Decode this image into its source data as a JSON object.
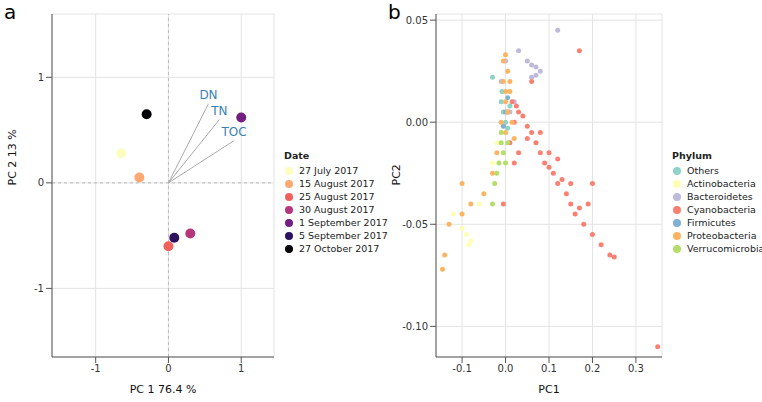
{
  "chart_data": [
    {
      "type": "scatter",
      "title": "a",
      "x_label": "PC 1  76.4 %",
      "y_label": "PC 2  13 %",
      "legend_title": "Date",
      "legend": "right",
      "grid": true,
      "marker": "circle",
      "xlim": [
        -1.6,
        1.45
      ],
      "ylim": [
        -1.65,
        1.6
      ],
      "xticks": [
        -1,
        0,
        1
      ],
      "yticks": [
        -1,
        0,
        1
      ],
      "series": [
        {
          "name": "27 July 2017",
          "color": "#FCFDBF",
          "x": [
            -0.65
          ],
          "y": [
            0.28
          ]
        },
        {
          "name": "15 August 2017",
          "color": "#FEA873",
          "x": [
            -0.4
          ],
          "y": [
            0.05
          ]
        },
        {
          "name": "25 August 2017",
          "color": "#F1605D",
          "x": [
            0.0
          ],
          "y": [
            -0.6
          ]
        },
        {
          "name": "30 August 2017",
          "color": "#B5367A",
          "x": [
            0.3
          ],
          "y": [
            -0.48
          ]
        },
        {
          "name": "1 September 2017",
          "color": "#721F81",
          "x": [
            1.0
          ],
          "y": [
            0.62
          ]
        },
        {
          "name": "5 September 2017",
          "color": "#2D1160",
          "x": [
            0.08
          ],
          "y": [
            -0.52
          ]
        },
        {
          "name": "27 October 2017",
          "color": "#000004",
          "x": [
            -0.3
          ],
          "y": [
            0.65
          ]
        }
      ],
      "loadings": [
        {
          "name": "DN",
          "x": 0.55,
          "y": 0.75
        },
        {
          "name": "TN",
          "x": 0.7,
          "y": 0.6
        },
        {
          "name": "TOC",
          "x": 0.9,
          "y": 0.4
        }
      ]
    },
    {
      "type": "scatter",
      "title": "b",
      "x_label": "PC1",
      "y_label": "PC2",
      "legend_title": "Phylum",
      "legend": "right",
      "grid": true,
      "marker": "circle",
      "xlim": [
        -0.16,
        0.36
      ],
      "ylim": [
        -0.115,
        0.053
      ],
      "xticks": [
        -0.1,
        {
          "value": 0,
          "label": "0.0"
        },
        0.1,
        0.2,
        0.3
      ],
      "yticks": [
        {
          "value": -0.1,
          "label": "-0.10"
        },
        -0.05,
        {
          "value": 0,
          "label": "0.00"
        },
        0.05
      ],
      "series": [
        {
          "name": "Others",
          "color": "#8DD3C7",
          "x": [
            -0.01,
            -0.005,
            0.0,
            0.005,
            -0.008,
            -0.03,
            0.01
          ],
          "y": [
            0.01,
            0.005,
            0.0,
            -0.003,
            0.015,
            0.022,
            0.008
          ]
        },
        {
          "name": "Actinobacteria",
          "color": "#FFFFB3",
          "x": [
            -0.12,
            -0.1,
            -0.09,
            -0.08,
            -0.085,
            -0.06,
            -0.03,
            -0.02
          ],
          "y": [
            -0.045,
            -0.052,
            -0.055,
            -0.058,
            -0.06,
            -0.04,
            -0.02,
            -0.01
          ]
        },
        {
          "name": "Bacteroidetes",
          "color": "#BEBADA",
          "x": [
            0.03,
            0.05,
            0.06,
            0.07,
            0.08,
            0.06,
            0.07,
            0.12,
            0.0,
            -0.01,
            0.02,
            0.01
          ],
          "y": [
            0.035,
            0.03,
            0.028,
            0.027,
            0.025,
            0.022,
            0.023,
            0.045,
            0.03,
            0.02,
            0.01,
            0.005
          ]
        },
        {
          "name": "Cyanobacteria",
          "color": "#FB8072",
          "x": [
            0.02,
            0.03,
            0.04,
            0.05,
            0.06,
            0.07,
            0.08,
            0.09,
            0.1,
            0.11,
            0.12,
            0.13,
            0.14,
            0.15,
            0.16,
            0.17,
            0.18,
            0.2,
            0.22,
            0.24,
            0.25,
            0.35,
            0.17,
            0.06,
            0.01,
            0.02,
            0.03,
            0.05,
            0.08,
            0.1,
            0.12,
            0.19,
            0.2,
            0.15,
            0.005,
            0.015,
            -0.005,
            0.025
          ],
          "y": [
            0.0,
            0.005,
            0.003,
            -0.002,
            -0.005,
            -0.01,
            -0.015,
            -0.02,
            -0.022,
            -0.025,
            -0.03,
            -0.028,
            -0.035,
            -0.04,
            -0.045,
            -0.042,
            -0.05,
            -0.055,
            -0.06,
            -0.065,
            -0.066,
            -0.11,
            0.035,
            0.02,
            -0.01,
            -0.02,
            -0.015,
            -0.008,
            -0.005,
            -0.015,
            -0.018,
            -0.04,
            -0.03,
            -0.03,
            0.005,
            0.01,
            -0.04,
            0.008
          ]
        },
        {
          "name": "Firmicutes",
          "color": "#80B1D3",
          "x": [
            0.0,
            0.005,
            -0.005
          ],
          "y": [
            0.005,
            0.012,
            -0.002
          ]
        },
        {
          "name": "Proteobacteria",
          "color": "#FDB462",
          "x": [
            0.0,
            0.005,
            -0.005,
            0.01,
            0.0,
            0.005,
            -0.01,
            0.015,
            0.0,
            0.02,
            -0.02,
            -0.03,
            -0.05,
            -0.08,
            -0.1,
            -0.13,
            -0.14,
            -0.145,
            -0.1,
            0.01,
            -0.005,
            0.0
          ],
          "y": [
            0.033,
            0.025,
            0.02,
            0.015,
            0.01,
            0.005,
            0.0,
            0.0,
            -0.005,
            -0.008,
            -0.015,
            -0.025,
            -0.035,
            -0.04,
            -0.045,
            -0.05,
            -0.065,
            -0.072,
            -0.03,
            0.02,
            0.03,
            0.015
          ]
        },
        {
          "name": "Verrucomicrobia",
          "color": "#B3DE69",
          "x": [
            -0.01,
            -0.015,
            -0.02,
            -0.025,
            -0.005,
            0.0,
            -0.01,
            -0.03,
            0.005
          ],
          "y": [
            -0.01,
            -0.02,
            -0.025,
            -0.03,
            -0.015,
            -0.02,
            -0.005,
            -0.04,
            -0.01
          ]
        }
      ]
    }
  ]
}
